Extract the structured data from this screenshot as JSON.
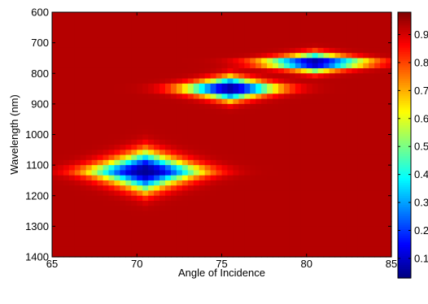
{
  "chart_data": {
    "type": "heatmap",
    "title": "",
    "xlabel": "Angle of Incidence",
    "ylabel": "Wavelength (nm)",
    "xlim": [
      65,
      85
    ],
    "ylim": [
      600,
      1400
    ],
    "y_reversed": true,
    "x_ticks": [
      65,
      70,
      75,
      80,
      85
    ],
    "y_ticks": [
      600,
      700,
      800,
      900,
      1000,
      1100,
      1200,
      1300,
      1400
    ],
    "colorbar": {
      "colormap": "jet",
      "range": [
        0.03,
        0.98
      ],
      "ticks": [
        0.1,
        0.2,
        0.3,
        0.4,
        0.5,
        0.6,
        0.7,
        0.8,
        0.9
      ],
      "tick_labels": [
        "0.1",
        "0.2",
        "0.3",
        "0.4",
        "0.5",
        "0.6",
        "0.7",
        "0.8",
        "0.9"
      ]
    },
    "background_value": 0.93,
    "features": [
      {
        "kind": "minimum",
        "angle": 70.5,
        "wavelength": 1120,
        "value": 0.05,
        "angle_halfwidth": 4.3,
        "wavelength_halfwidth": 80
      },
      {
        "kind": "minimum",
        "angle": 75.5,
        "wavelength": 850,
        "value": 0.05,
        "angle_halfwidth": 4.0,
        "wavelength_halfwidth": 48
      },
      {
        "kind": "minimum",
        "angle": 80.5,
        "wavelength": 765,
        "value": 0.05,
        "angle_halfwidth": 4.5,
        "wavelength_halfwidth": 38
      }
    ]
  }
}
